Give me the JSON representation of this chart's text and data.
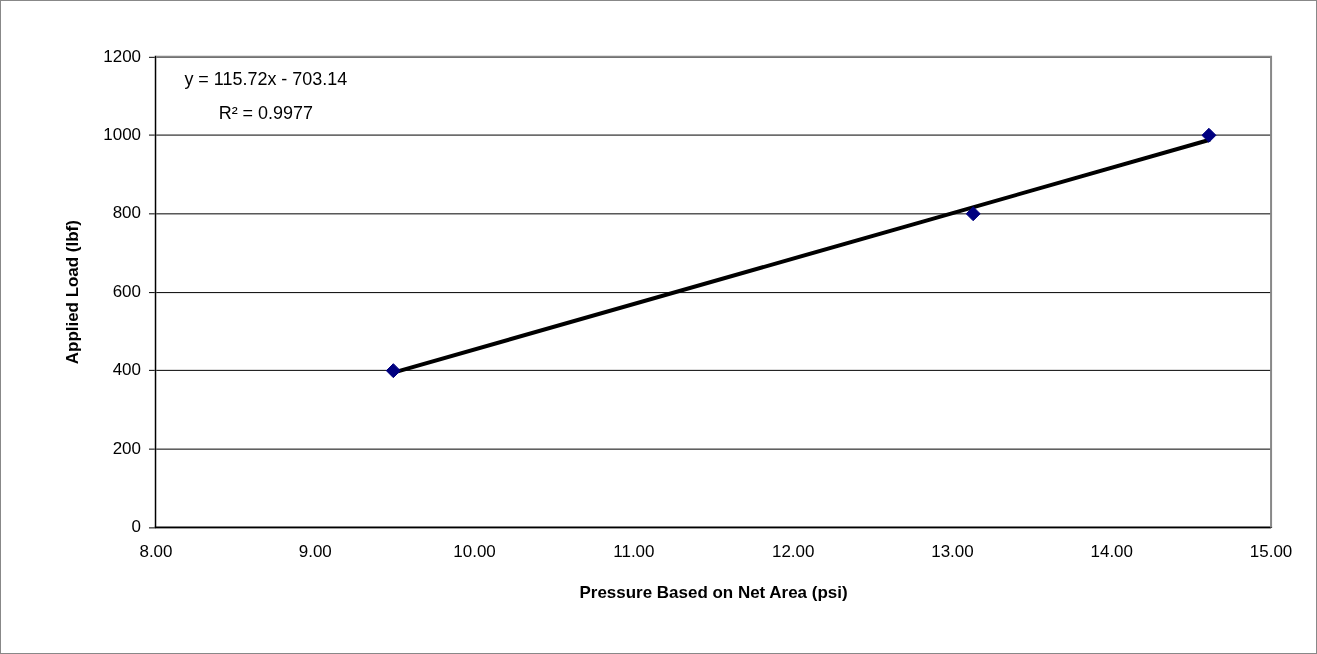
{
  "chart_data": {
    "type": "scatter",
    "xlabel": "Pressure Based on Net Area (psi)",
    "ylabel": "Applied Load (lbf)",
    "annotations": [
      "y = 115.72x - 703.14",
      "R² = 0.9977"
    ],
    "series": [
      {
        "type": "scatter",
        "color": "#000080",
        "marker": "diamond",
        "x": [
          9.49,
          13.13,
          14.61
        ],
        "values": [
          400,
          800,
          1000
        ]
      },
      {
        "type": "line",
        "color": "#000000",
        "marker": "none",
        "x": [
          9.49,
          14.61
        ],
        "values": [
          395,
          988
        ]
      }
    ],
    "xlim": [
      8,
      15
    ],
    "xticks": [
      {
        "value": 8,
        "label": "8.00"
      },
      {
        "value": 9,
        "label": "9.00"
      },
      {
        "value": 10,
        "label": "10.00"
      },
      {
        "value": 11,
        "label": "11.00"
      },
      {
        "value": 12,
        "label": "12.00"
      },
      {
        "value": 13,
        "label": "13.00"
      },
      {
        "value": 14,
        "label": "14.00"
      },
      {
        "value": 15,
        "label": "15.00"
      }
    ],
    "ylim": [
      0,
      1200
    ],
    "yticks": [
      0,
      200,
      400,
      600,
      800,
      1000,
      1200
    ],
    "grid": "y",
    "legend": false
  }
}
